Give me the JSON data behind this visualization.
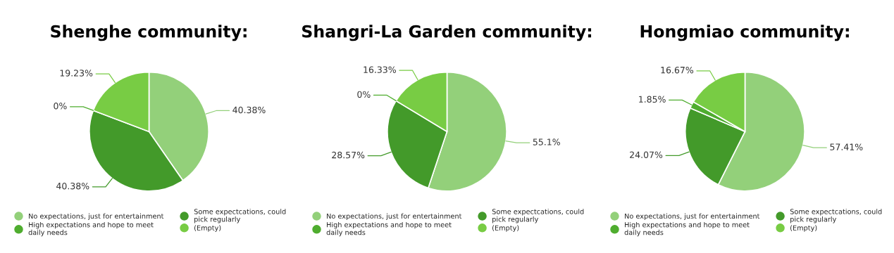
{
  "chart_data": [
    {
      "type": "pie",
      "title": "Shenghe community:",
      "categories": [
        "No expectations, just for entertainment",
        "Some expectcations, could pick regularly",
        "High expectations and hope to meet daily needs",
        "(Empty)"
      ],
      "values": [
        40.38,
        40.38,
        0,
        19.23
      ],
      "value_labels": [
        "40.38%",
        "40.38%",
        "0%",
        "19.23%"
      ],
      "colors": [
        "#93d07a",
        "#439a2a",
        "#4fad2f",
        "#78cc44"
      ],
      "legend": "bottom"
    },
    {
      "type": "pie",
      "title": "Shangri-La Garden community:",
      "categories": [
        "No expectations, just for entertainment",
        "Some expectcations, could pick regularly",
        "High expectations and hope to meet daily needs",
        "(Empty)"
      ],
      "values": [
        55.1,
        28.57,
        0,
        16.33
      ],
      "value_labels": [
        "55.1%",
        "28.57%",
        "0%",
        "16.33%"
      ],
      "colors": [
        "#93d07a",
        "#439a2a",
        "#4fad2f",
        "#78cc44"
      ],
      "legend": "bottom"
    },
    {
      "type": "pie",
      "title": "Hongmiao community:",
      "categories": [
        "No expectations, just for entertainment",
        "Some expectcations, could pick regularly",
        "High expectations and hope to meet daily needs",
        "(Empty)"
      ],
      "values": [
        57.41,
        24.07,
        1.85,
        16.67
      ],
      "value_labels": [
        "57.41%",
        "24.07%",
        "1.85%",
        "16.67%"
      ],
      "colors": [
        "#93d07a",
        "#439a2a",
        "#4fad2f",
        "#78cc44"
      ],
      "legend": "bottom"
    }
  ]
}
